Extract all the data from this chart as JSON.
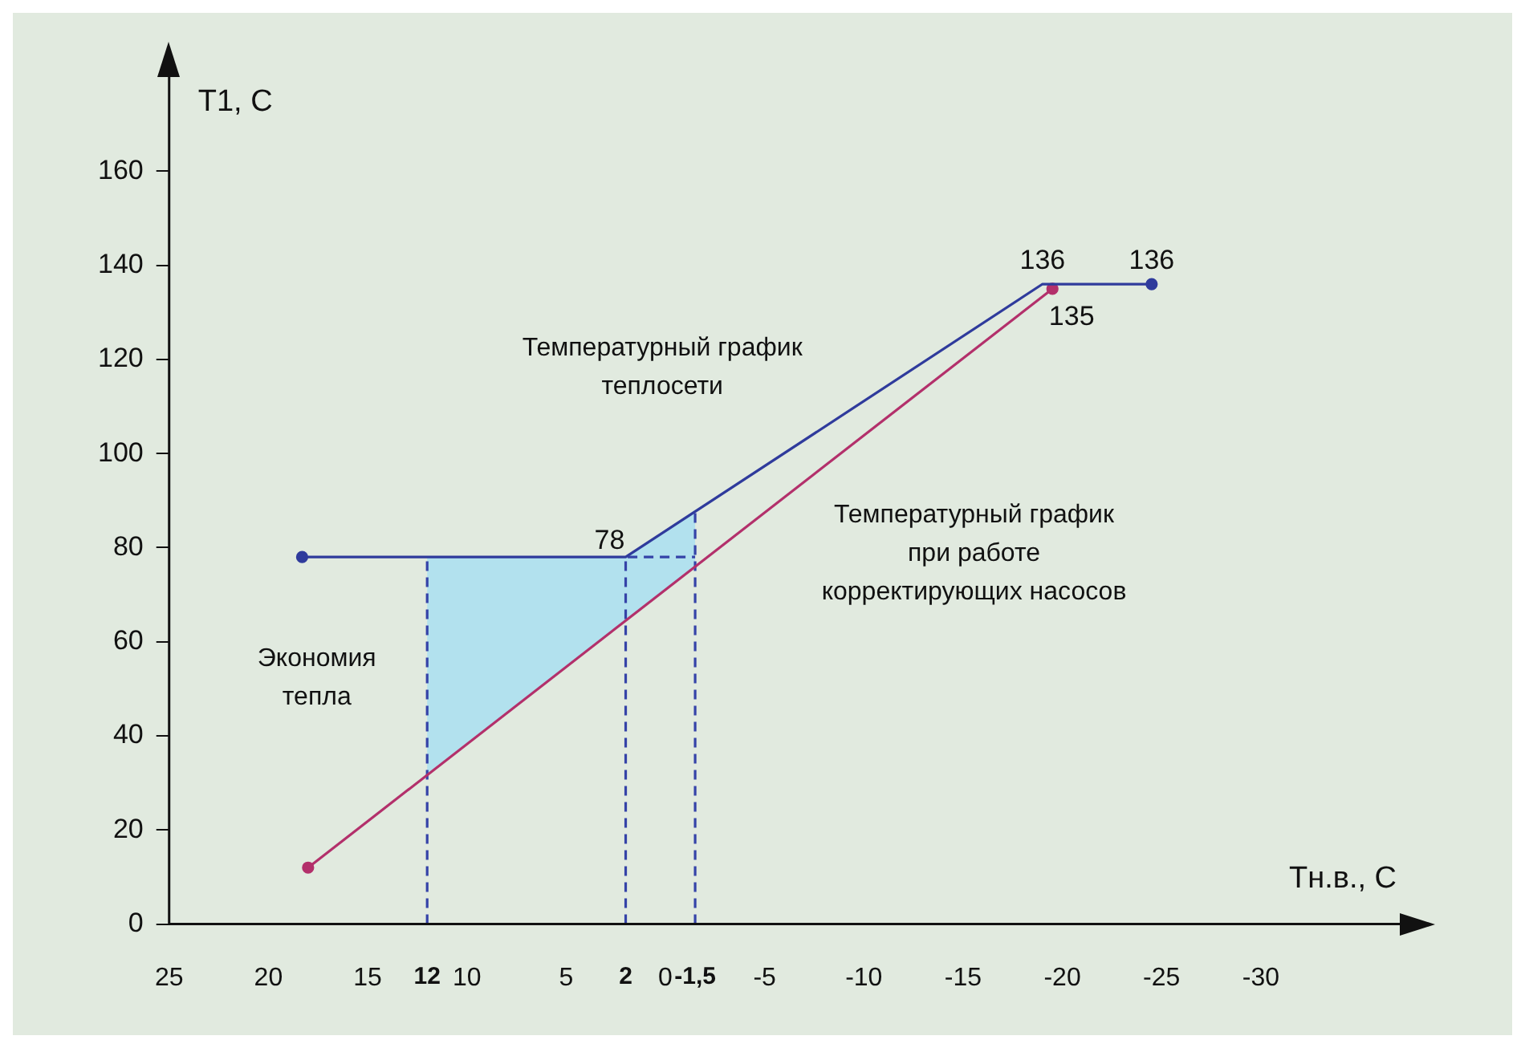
{
  "chart_data": {
    "type": "line",
    "xlabel": "Тн.в., C",
    "ylabel": "T1, C",
    "xlim": [
      25,
      -37
    ],
    "ylim": [
      0,
      180
    ],
    "xticks": [
      25,
      20,
      15,
      12,
      10,
      5,
      2,
      0,
      {
        "value": -1.5,
        "label": "-1,5"
      },
      -5,
      -10,
      -15,
      -20,
      -25,
      -30
    ],
    "yticks": [
      0,
      20,
      40,
      60,
      80,
      100,
      120,
      140,
      160
    ],
    "grid": false,
    "legend": false,
    "marker": "circle",
    "annotations": [
      "Экономия тепла"
    ],
    "series": [
      {
        "name": "Температурный график теплосети",
        "color": "#2f3b9c",
        "x": [
          18.3,
          2,
          -19,
          -24.5
        ],
        "values": [
          78,
          78,
          136,
          136
        ],
        "value_labels": [
          null,
          "78",
          "136",
          "136"
        ]
      },
      {
        "name": "Температурный график при работе корректирующих насосов",
        "color": "#b3306b",
        "x": [
          18,
          -19.5
        ],
        "values": [
          12,
          135
        ],
        "value_labels": [
          null,
          "135"
        ]
      },
      {
        "type": "area",
        "color": "#b2e1ee",
        "marker": "none",
        "x": [
          12,
          2,
          -1.5,
          -1.5,
          12
        ],
        "values": [
          78,
          78,
          88,
          76,
          32
        ]
      },
      {
        "color": "#3543a8",
        "x": [
          12,
          12
        ],
        "values": [
          0,
          78
        ],
        "line_style": "dashed",
        "marker": "none"
      },
      {
        "color": "#3543a8",
        "x": [
          2,
          2,
          -1.5
        ],
        "values": [
          0,
          78,
          78
        ],
        "line_style": "dashed",
        "marker": "none"
      },
      {
        "color": "#3543a8",
        "x": [
          -1.5,
          -1.5
        ],
        "values": [
          0,
          88
        ],
        "line_style": "dashed",
        "marker": "none"
      }
    ]
  }
}
